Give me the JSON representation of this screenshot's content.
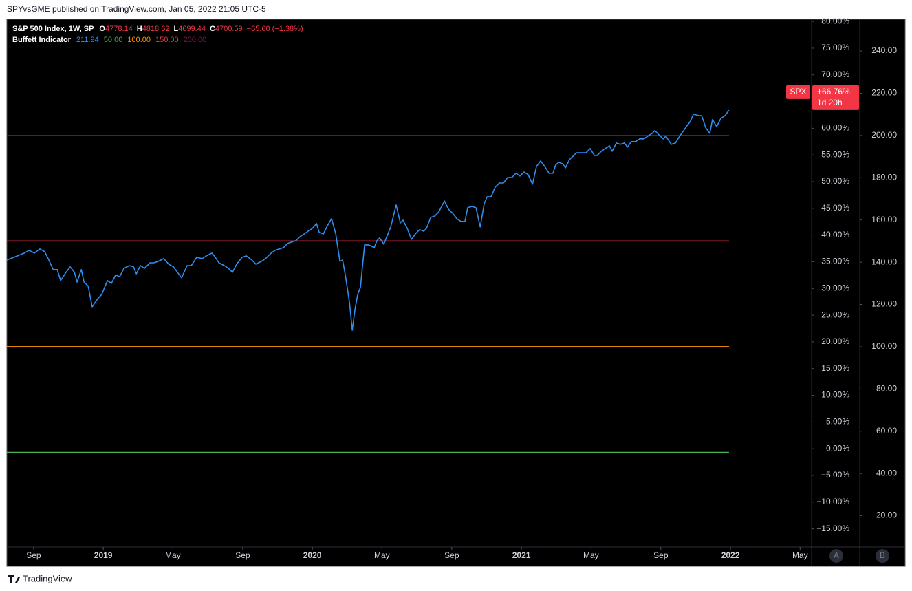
{
  "header": {
    "published": "SPYvsGME published on TradingView.com, Jan 05, 2022 21:05 UTC-5",
    "footer": "TradingView"
  },
  "chart_data": {
    "type": "line",
    "legend": {
      "symbol": "S&P 500 Index, 1W, SP",
      "ohlc": [
        {
          "label": "O",
          "value": 4778.14
        },
        {
          "label": "H",
          "value": 4818.62
        },
        {
          "label": "L",
          "value": 4699.44
        },
        {
          "label": "C",
          "value": 4700.59
        }
      ],
      "change": "−65.60 (−1.38%)"
    },
    "series": [
      {
        "name": "Buffett Indicator",
        "color": "#2f8ff0",
        "last": 211.94,
        "x": [
          2018.539,
          2018.572,
          2018.622,
          2018.645,
          2018.671,
          2018.697,
          2018.72,
          2018.743,
          2018.76,
          2018.78,
          2018.796,
          2018.822,
          2018.842,
          2018.862,
          2018.875,
          2018.895,
          2018.908,
          2018.928,
          2018.947,
          2018.974,
          2018.993,
          2019.02,
          2019.039,
          2019.059,
          2019.079,
          2019.099,
          2019.125,
          2019.145,
          2019.158,
          2019.178,
          2019.197,
          2019.224,
          2019.243,
          2019.263,
          2019.289,
          2019.313,
          2019.336,
          2019.355,
          2019.375,
          2019.401,
          2019.421,
          2019.447,
          2019.474,
          2019.493,
          2019.52,
          2019.536,
          2019.553,
          2019.579,
          2019.599,
          2019.618,
          2019.638,
          2019.664,
          2019.684,
          2019.711,
          2019.73,
          2019.757,
          2019.776,
          2019.803,
          2019.822,
          2019.842,
          2019.862,
          2019.882,
          2019.901,
          2019.921,
          2019.941,
          2019.961,
          2019.98,
          2020.0,
          2020.02,
          2020.033,
          2020.053,
          2020.072,
          2020.092,
          2020.112,
          2020.132,
          2020.145,
          2020.158,
          2020.178,
          2020.191,
          2020.204,
          2020.217,
          2020.23,
          2020.25,
          2020.27,
          2020.296,
          2020.309,
          2020.322,
          2020.342,
          2020.355,
          2020.375,
          2020.401,
          2020.421,
          2020.434,
          2020.454,
          2020.474,
          2020.493,
          2020.513,
          2020.533,
          2020.546,
          2020.566,
          2020.586,
          2020.605,
          2020.632,
          2020.651,
          2020.671,
          2020.691,
          2020.711,
          2020.73,
          2020.743,
          2020.763,
          2020.783,
          2020.803,
          2020.822,
          2020.836,
          2020.855,
          2020.875,
          2020.895,
          2020.914,
          2020.934,
          2020.954,
          2020.974,
          2020.993,
          2021.013,
          2021.033,
          2021.053,
          2021.072,
          2021.092,
          2021.112,
          2021.132,
          2021.151,
          2021.164,
          2021.178,
          2021.197,
          2021.211,
          2021.23,
          2021.25,
          2021.263,
          2021.289,
          2021.309,
          2021.329,
          2021.349,
          2021.362,
          2021.382,
          2021.401,
          2021.421,
          2021.434,
          2021.454,
          2021.474,
          2021.493,
          2021.507,
          2021.526,
          2021.546,
          2021.566,
          2021.586,
          2021.605,
          2021.625,
          2021.638,
          2021.651,
          2021.664,
          2021.678,
          2021.691,
          2021.704,
          2021.717,
          2021.737,
          2021.757,
          2021.776,
          2021.789,
          2021.809,
          2021.822,
          2021.849,
          2021.862,
          2021.882,
          2021.901,
          2021.914,
          2021.934,
          2021.954,
          2021.974,
          2021.993
        ],
        "values": [
          141.0,
          142.3,
          144.3,
          145.6,
          144.3,
          146.3,
          145.0,
          140.4,
          136.5,
          136.5,
          131.3,
          135.2,
          137.8,
          135.2,
          130.6,
          136.5,
          130.6,
          128.7,
          118.9,
          122.8,
          124.8,
          131.3,
          130.0,
          133.9,
          133.2,
          137.1,
          138.4,
          137.8,
          134.5,
          138.4,
          137.1,
          139.7,
          139.7,
          140.4,
          141.7,
          139.1,
          137.8,
          135.2,
          132.6,
          138.4,
          138.4,
          142.3,
          141.7,
          143.0,
          144.3,
          142.3,
          139.7,
          138.4,
          137.1,
          135.2,
          139.1,
          142.3,
          143.0,
          141.0,
          139.1,
          140.4,
          141.7,
          144.3,
          145.6,
          146.3,
          146.9,
          148.9,
          149.5,
          150.2,
          152.1,
          153.4,
          154.7,
          156.0,
          158.3,
          154.1,
          153.4,
          157.3,
          160.6,
          153.4,
          140.4,
          141.0,
          133.9,
          120.8,
          107.8,
          117.6,
          124.8,
          128.0,
          148.2,
          148.2,
          146.9,
          150.2,
          151.5,
          148.5,
          151.8,
          156.7,
          167.1,
          158.6,
          159.9,
          156.0,
          150.8,
          153.4,
          155.4,
          154.7,
          156.0,
          161.2,
          161.9,
          163.8,
          169.0,
          165.1,
          163.2,
          160.6,
          159.3,
          159.3,
          165.8,
          166.4,
          165.8,
          156.7,
          167.7,
          171.0,
          171.0,
          175.6,
          177.5,
          177.5,
          180.1,
          180.1,
          182.1,
          180.8,
          182.7,
          181.4,
          176.9,
          185.3,
          187.9,
          185.3,
          182.1,
          182.1,
          186.0,
          187.3,
          186.6,
          184.7,
          188.6,
          190.5,
          191.8,
          191.8,
          191.8,
          193.8,
          190.5,
          190.5,
          192.5,
          193.8,
          195.1,
          192.5,
          196.4,
          195.8,
          196.4,
          194.5,
          197.1,
          197.1,
          198.4,
          198.4,
          199.7,
          201.0,
          202.3,
          201.0,
          199.7,
          198.4,
          199.7,
          197.7,
          195.8,
          196.4,
          199.7,
          202.3,
          204.2,
          206.8,
          210.1,
          209.4,
          209.4,
          203.6,
          201.0,
          207.5,
          204.2,
          208.1,
          209.4,
          211.94
        ]
      }
    ],
    "levels": [
      {
        "value": 50,
        "label": "50.00",
        "color": "#4caf50"
      },
      {
        "value": 100,
        "label": "100.00",
        "color": "#ff9800"
      },
      {
        "value": 150,
        "label": "150.00",
        "color": "#f23645"
      },
      {
        "value": 200,
        "label": "200.00",
        "color": "#880e4f"
      }
    ],
    "xlim": [
      2018.539,
      2022.388
    ],
    "xticks": [
      {
        "value": 2018.667,
        "label": "Sep"
      },
      {
        "value": 2019,
        "label": "2019"
      },
      {
        "value": 2019.333,
        "label": "May"
      },
      {
        "value": 2019.667,
        "label": "Sep"
      },
      {
        "value": 2020,
        "label": "2020"
      },
      {
        "value": 2020.333,
        "label": "May"
      },
      {
        "value": 2020.667,
        "label": "Sep"
      },
      {
        "value": 2021,
        "label": "2021"
      },
      {
        "value": 2021.333,
        "label": "May"
      },
      {
        "value": 2021.667,
        "label": "Sep"
      },
      {
        "value": 2022,
        "label": "2022"
      },
      {
        "value": 2022.333,
        "label": "May"
      }
    ],
    "ylim": [
      5.2,
      255
    ],
    "yticks": [
      {
        "value": 20,
        "label": "20.00"
      },
      {
        "value": 40,
        "label": "40.00"
      },
      {
        "value": 60,
        "label": "60.00"
      },
      {
        "value": 80,
        "label": "80.00"
      },
      {
        "value": 100,
        "label": "100.00"
      },
      {
        "value": 120,
        "label": "120.00"
      },
      {
        "value": 140,
        "label": "140.00"
      },
      {
        "value": 160,
        "label": "160.00"
      },
      {
        "value": 180,
        "label": "180.00"
      },
      {
        "value": 200,
        "label": "200.00"
      },
      {
        "value": 220,
        "label": "220.00"
      },
      {
        "value": 240,
        "label": "240.00"
      }
    ],
    "y2lim": [
      -18.4,
      80.4
    ],
    "y2ticks": [
      {
        "value": -15,
        "label": "−15.00%"
      },
      {
        "value": -10,
        "label": "−10.00%"
      },
      {
        "value": -5,
        "label": "−5.00%"
      },
      {
        "value": 0,
        "label": "0.00%"
      },
      {
        "value": 5,
        "label": "5.00%"
      },
      {
        "value": 10,
        "label": "10.00%"
      },
      {
        "value": 15,
        "label": "15.00%"
      },
      {
        "value": 20,
        "label": "20.00%"
      },
      {
        "value": 25,
        "label": "25.00%"
      },
      {
        "value": 30,
        "label": "30.00%"
      },
      {
        "value": 35,
        "label": "35.00%"
      },
      {
        "value": 40,
        "label": "40.00%"
      },
      {
        "value": 45,
        "label": "45.00%"
      },
      {
        "value": 50,
        "label": "50.00%"
      },
      {
        "value": 55,
        "label": "55.00%"
      },
      {
        "value": 60,
        "label": "60.00%"
      },
      {
        "value": 65,
        "label": "65.00%"
      },
      {
        "value": 70,
        "label": "70.00%"
      },
      {
        "value": 75,
        "label": "75.00%"
      },
      {
        "value": 80,
        "label": "80.00%"
      }
    ],
    "price_tag": {
      "symbol": "SPX",
      "change": {
        "value": 66.76,
        "label": "+66.76%"
      },
      "countdown": "1d 20h"
    },
    "axis_buttons": [
      "A",
      "B"
    ]
  }
}
